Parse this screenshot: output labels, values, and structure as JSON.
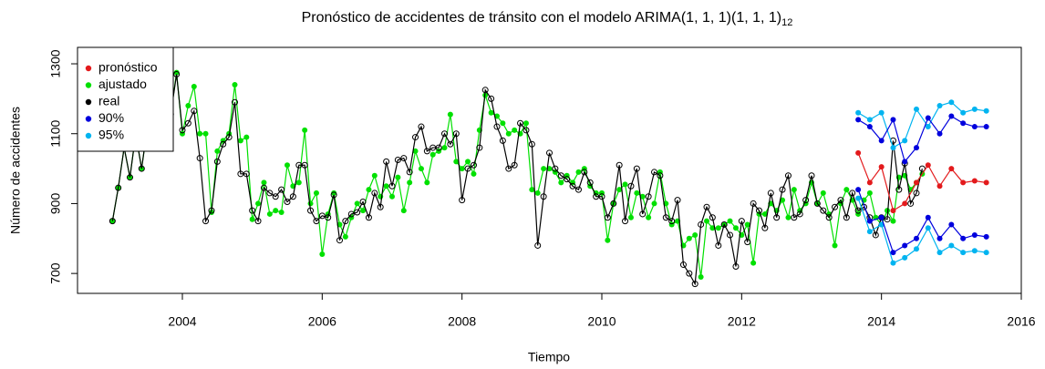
{
  "chart_data": {
    "type": "line",
    "title": "Pronóstico de accidentes de tránsito con el modelo ARIMA(1, 1, 1)(1, 1, 1)",
    "title_subscript": "12",
    "x_label": "Tiempo",
    "y_label": "Número de accidentes",
    "xlim": [
      2002.5,
      2016
    ],
    "xticks": [
      2004,
      2006,
      2008,
      2010,
      2012,
      2014,
      2016
    ],
    "ylim": [
      643,
      1347
    ],
    "yticks": [
      700,
      900,
      1100,
      1300
    ],
    "legend": "top-left",
    "x": [
      2003,
      2003.083,
      2003.167,
      2003.25,
      2003.333,
      2003.417,
      2003.5,
      2003.583,
      2003.667,
      2003.75,
      2003.833,
      2003.917,
      2004,
      2004.083,
      2004.167,
      2004.25,
      2004.333,
      2004.417,
      2004.5,
      2004.583,
      2004.667,
      2004.75,
      2004.833,
      2004.917,
      2005,
      2005.083,
      2005.167,
      2005.25,
      2005.333,
      2005.417,
      2005.5,
      2005.583,
      2005.667,
      2005.75,
      2005.833,
      2005.917,
      2006,
      2006.083,
      2006.167,
      2006.25,
      2006.333,
      2006.417,
      2006.5,
      2006.583,
      2006.667,
      2006.75,
      2006.833,
      2006.917,
      2007,
      2007.083,
      2007.167,
      2007.25,
      2007.333,
      2007.417,
      2007.5,
      2007.583,
      2007.667,
      2007.75,
      2007.833,
      2007.917,
      2008,
      2008.083,
      2008.167,
      2008.25,
      2008.333,
      2008.417,
      2008.5,
      2008.583,
      2008.667,
      2008.75,
      2008.833,
      2008.917,
      2009,
      2009.083,
      2009.167,
      2009.25,
      2009.333,
      2009.417,
      2009.5,
      2009.583,
      2009.667,
      2009.75,
      2009.833,
      2009.917,
      2010,
      2010.083,
      2010.167,
      2010.25,
      2010.333,
      2010.417,
      2010.5,
      2010.583,
      2010.667,
      2010.75,
      2010.833,
      2010.917,
      2011,
      2011.083,
      2011.167,
      2011.25,
      2011.333,
      2011.417,
      2011.5,
      2011.583,
      2011.667,
      2011.75,
      2011.833,
      2011.917,
      2012,
      2012.083,
      2012.167,
      2012.25,
      2012.333,
      2012.417,
      2012.5,
      2012.583,
      2012.667,
      2012.75,
      2012.833,
      2012.917,
      2013,
      2013.083,
      2013.167,
      2013.25,
      2013.333,
      2013.417,
      2013.5,
      2013.583,
      2013.667,
      2013.75,
      2013.833,
      2013.917,
      2014,
      2014.083,
      2014.167,
      2014.25,
      2014.333,
      2014.417,
      2014.5,
      2014.583
    ],
    "series": [
      {
        "name": "pronóstico",
        "color": "#e31a1c",
        "marker": "dot",
        "x": [
          2013.667,
          2013.833,
          2014,
          2014.167,
          2014.333,
          2014.5,
          2014.667,
          2014.833,
          2015,
          2015.167,
          2015.333,
          2015.5
        ],
        "values": [
          1045,
          960,
          1005,
          880,
          900,
          960,
          1010,
          950,
          1000,
          960,
          965,
          960
        ]
      },
      {
        "name": "ajustado",
        "color": "#00e000",
        "marker": "dot",
        "values": [
          850,
          945,
          1060,
          975,
          1100,
          1000,
          1120,
          1110,
          1140,
          1310,
          1155,
          1275,
          1100,
          1180,
          1235,
          1100,
          1100,
          875,
          1050,
          1080,
          1100,
          1240,
          1080,
          1090,
          855,
          900,
          960,
          870,
          880,
          875,
          1010,
          950,
          960,
          1110,
          900,
          930,
          755,
          870,
          930,
          840,
          805,
          860,
          900,
          880,
          940,
          980,
          920,
          950,
          920,
          975,
          880,
          960,
          1050,
          1000,
          960,
          1040,
          1050,
          1060,
          1155,
          1020,
          1000,
          1020,
          985,
          1110,
          1210,
          1160,
          1150,
          1130,
          1100,
          1110,
          1100,
          1130,
          940,
          930,
          1000,
          1000,
          990,
          960,
          980,
          960,
          990,
          1000,
          950,
          930,
          930,
          795,
          900,
          940,
          955,
          860,
          930,
          920,
          860,
          900,
          990,
          900,
          840,
          850,
          780,
          800,
          810,
          690,
          850,
          830,
          830,
          840,
          850,
          830,
          810,
          840,
          730,
          870,
          870,
          900,
          880,
          910,
          860,
          940,
          880,
          900,
          960,
          900,
          930,
          870,
          780,
          900,
          940,
          910,
          870,
          910,
          930,
          860,
          840,
          880,
          850,
          975,
          980,
          940,
          960,
          985
        ]
      },
      {
        "name": "real",
        "color": "#000000",
        "marker": "circle",
        "values": [
          850,
          945,
          1060,
          975,
          1100,
          1000,
          1120,
          1110,
          1140,
          1305,
          1155,
          1270,
          1110,
          1130,
          1165,
          1030,
          850,
          880,
          1020,
          1070,
          1090,
          1190,
          985,
          985,
          880,
          850,
          945,
          930,
          920,
          940,
          905,
          920,
          1010,
          1010,
          880,
          850,
          865,
          860,
          925,
          795,
          850,
          870,
          875,
          905,
          860,
          930,
          890,
          1020,
          950,
          1025,
          1030,
          990,
          1090,
          1120,
          1050,
          1060,
          1060,
          1100,
          1070,
          1100,
          910,
          1000,
          1010,
          1060,
          1225,
          1200,
          1120,
          1080,
          1000,
          1010,
          1130,
          1110,
          1070,
          780,
          920,
          1045,
          1000,
          980,
          970,
          950,
          940,
          990,
          960,
          920,
          920,
          860,
          900,
          1010,
          850,
          950,
          1000,
          870,
          920,
          990,
          980,
          860,
          850,
          910,
          725,
          700,
          670,
          840,
          890,
          860,
          780,
          840,
          810,
          720,
          850,
          790,
          900,
          880,
          830,
          930,
          860,
          940,
          980,
          860,
          870,
          910,
          980,
          900,
          880,
          860,
          890,
          910,
          860,
          930,
          880,
          890,
          860,
          810,
          860,
          855,
          1080,
          940,
          1015,
          900,
          930,
          1000
        ]
      },
      {
        "name": "90%",
        "color": "#0000dd",
        "marker": "dot",
        "x": [
          2013.667,
          2013.833,
          2014,
          2014.167,
          2014.333,
          2014.5,
          2014.667,
          2014.833,
          2015,
          2015.167,
          2015.333,
          2015.5
        ],
        "upper": [
          1140,
          1120,
          1080,
          1140,
          1020,
          1060,
          1145,
          1100,
          1150,
          1130,
          1120,
          1120
        ],
        "lower": [
          940,
          850,
          860,
          760,
          780,
          800,
          860,
          800,
          840,
          800,
          810,
          805
        ]
      },
      {
        "name": "95%",
        "color": "#00b4f0",
        "marker": "dot",
        "x": [
          2013.667,
          2013.833,
          2014,
          2014.167,
          2014.333,
          2014.5,
          2014.667,
          2014.833,
          2015,
          2015.167,
          2015.333,
          2015.5
        ],
        "upper": [
          1160,
          1140,
          1160,
          1060,
          1080,
          1170,
          1120,
          1180,
          1190,
          1160,
          1170,
          1165
        ],
        "lower": [
          915,
          820,
          840,
          730,
          745,
          770,
          830,
          760,
          780,
          760,
          765,
          760
        ]
      }
    ]
  }
}
